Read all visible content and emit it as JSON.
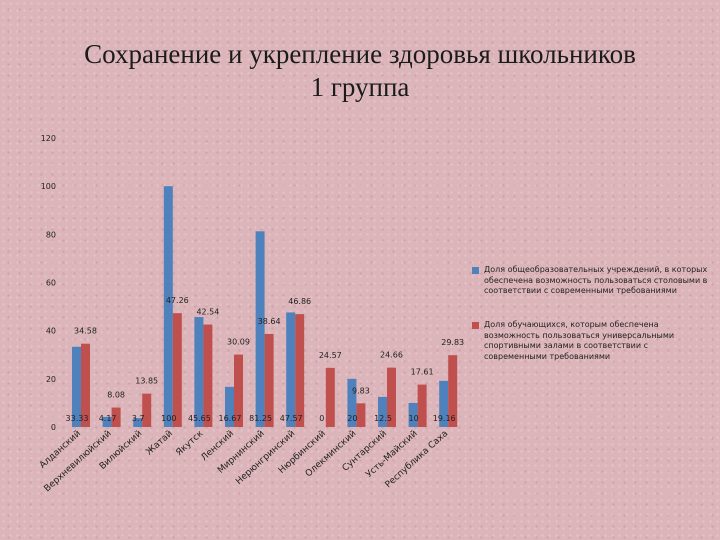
{
  "title_line1": "Сохранение и укрепление здоровья школьников",
  "title_line2": "1 группа",
  "colors": {
    "series1": "#4f81bd",
    "series2": "#c0504d"
  },
  "chart_data": {
    "type": "bar",
    "ylim": [
      0,
      120
    ],
    "yticks": [
      "0",
      "20",
      "40",
      "60",
      "80",
      "100",
      "120"
    ],
    "grid": false,
    "legend_position": "right",
    "categories": [
      "Алданский",
      "Верхневилюйский",
      "Вилюйский",
      "Жатай",
      "Якутск",
      "Ленский",
      "Мирнинский",
      "Нерюнгринский",
      "Нюрбинский",
      "Олекминский",
      "Сунтарский",
      "Усть-Майский",
      "Республика Саха"
    ],
    "series": [
      {
        "name": "Доля общеобразовательных учреждений, в которых обеспечена возможность пользоваться столовыми в соответствии с современными требованиями",
        "values": [
          33.33,
          4.17,
          3.7,
          100,
          45.65,
          16.67,
          81.25,
          47.57,
          0,
          20,
          12.5,
          10,
          19.16
        ],
        "labels": [
          "33.33",
          "4.17",
          "3.7",
          "100",
          "45.65",
          "16.67",
          "81.25",
          "47.57",
          "0",
          "20",
          "12.5",
          "10",
          "19.16"
        ]
      },
      {
        "name": "Доля обучающихся, которым обеспечена возможность пользоваться универсальными спортивными залами в соответствии с современными требованиями",
        "values": [
          34.58,
          8.08,
          13.85,
          47.26,
          42.54,
          30.09,
          38.64,
          46.86,
          24.57,
          9.83,
          24.66,
          17.61,
          29.83
        ],
        "labels": [
          "34.58",
          "8.08",
          "13.85",
          "47.26",
          "42.54",
          "30.09",
          "38.64",
          "46.86",
          "24.57",
          "9.83",
          "24.66",
          "17.61",
          "29.83"
        ]
      }
    ]
  }
}
